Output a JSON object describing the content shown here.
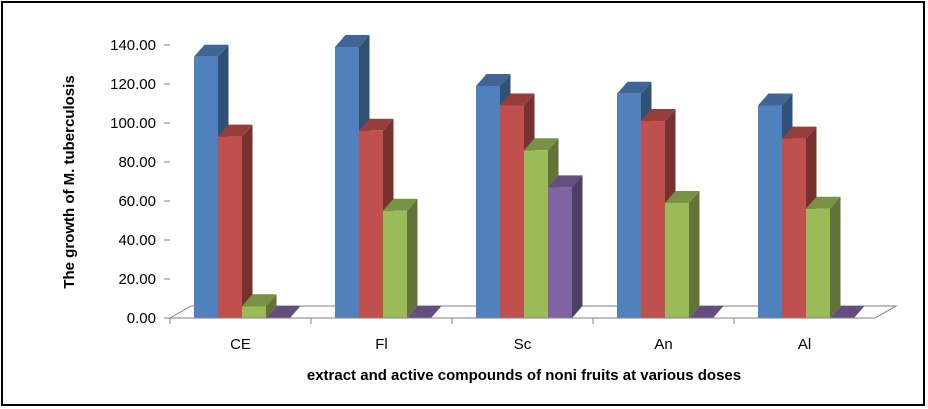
{
  "chart_data": {
    "type": "bar",
    "style": "3d-clustered-column",
    "categories": [
      "CE",
      "Fl",
      "Sc",
      "An",
      "Al"
    ],
    "series": [
      {
        "color": "#4F81BD",
        "values": [
          134,
          139,
          119,
          115,
          109
        ]
      },
      {
        "color": "#C0504D",
        "values": [
          93,
          96,
          109,
          101,
          92
        ]
      },
      {
        "color": "#9BBB59",
        "values": [
          6,
          55,
          86,
          59,
          56
        ]
      },
      {
        "color": "#8064A2",
        "values": [
          0,
          0,
          67,
          0,
          0
        ]
      }
    ],
    "xlabel": "extract and active compounds of noni fruits at various doses",
    "ylabel": "The growth of M. tuberculosis",
    "ylim": [
      0,
      140
    ],
    "yticks": [
      "0.00",
      "20.00",
      "40.00",
      "60.00",
      "80.00",
      "100.00",
      "120.00",
      "140.00"
    ],
    "grid": false,
    "legend": "none"
  }
}
